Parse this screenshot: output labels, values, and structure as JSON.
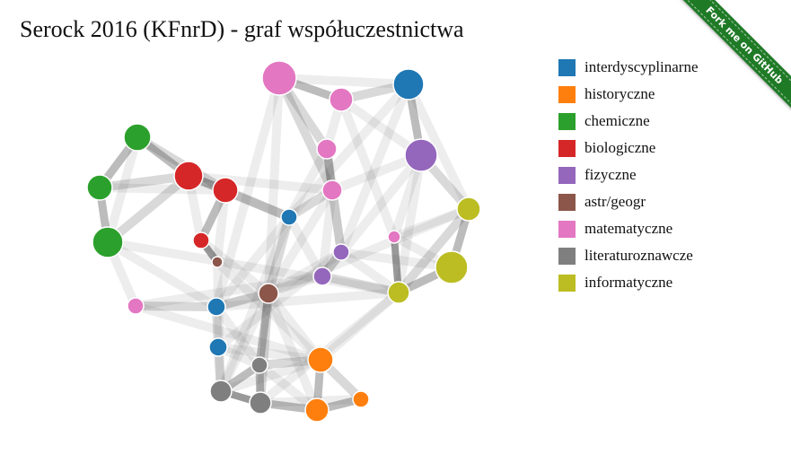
{
  "title": "Serock 2016 (KFnrD) - graf współuczestnictwa",
  "ribbon": {
    "label": "Fork me on GitHub",
    "color": "#1f7a26"
  },
  "categories": [
    {
      "label": "interdyscyplinarne",
      "color": "#1f77b4"
    },
    {
      "label": "historyczne",
      "color": "#ff7f0e"
    },
    {
      "label": "chemiczne",
      "color": "#2ca02c"
    },
    {
      "label": "biologiczne",
      "color": "#d62728"
    },
    {
      "label": "fizyczne",
      "color": "#9467bd"
    },
    {
      "label": "astr/geogr",
      "color": "#8c564b"
    },
    {
      "label": "matematyczne",
      "color": "#e377c2"
    },
    {
      "label": "literaturoznawcze",
      "color": "#7f7f7f"
    },
    {
      "label": "informatyczne",
      "color": "#bcbd22"
    }
  ]
}
